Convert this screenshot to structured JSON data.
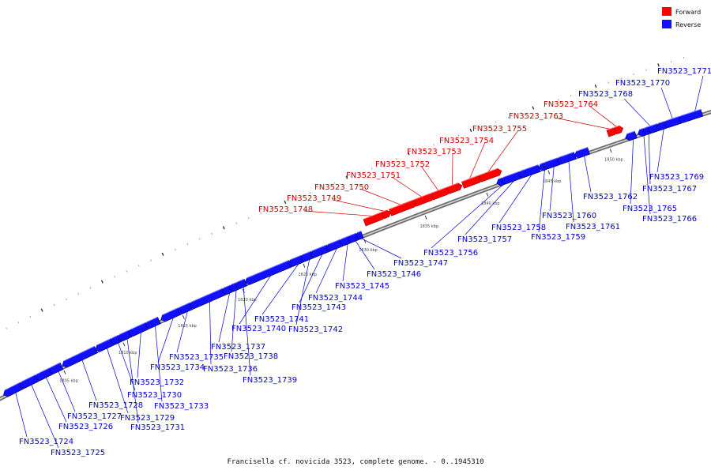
{
  "caption": "Francisella cf. novicida 3523, complete genome. - 0..1945310",
  "legend": {
    "forward": {
      "label": "Forward",
      "color": "#ff0000"
    },
    "reverse": {
      "label": "Reverse",
      "color": "#1010ff"
    }
  },
  "colors": {
    "forward_text": "#cc0000",
    "reverse_text": "#0000cc",
    "backbone": "#888888"
  },
  "ticks": [
    {
      "kbp": 1805,
      "label": "1805 kbp"
    },
    {
      "kbp": 1810,
      "label": "1810 kbp"
    },
    {
      "kbp": 1815,
      "label": "1815 kbp"
    },
    {
      "kbp": 1820,
      "label": "1820 kbp"
    },
    {
      "kbp": 1825,
      "label": "1825 kbp"
    },
    {
      "kbp": 1830,
      "label": "1830 kbp"
    },
    {
      "kbp": 1835,
      "label": "1835 kbp"
    },
    {
      "kbp": 1840,
      "label": "1840 kbp"
    },
    {
      "kbp": 1845,
      "label": "1845 kbp"
    },
    {
      "kbp": 1850,
      "label": "1850 kbp"
    }
  ],
  "genes": [
    {
      "name": "FN3523_1724",
      "strand": "reverse",
      "start": 1800.3,
      "end": 1801.6
    },
    {
      "name": "FN3523_1725",
      "strand": "reverse",
      "start": 1801.7,
      "end": 1802.9
    },
    {
      "name": "FN3523_1726",
      "strand": "reverse",
      "start": 1803.0,
      "end": 1804.1
    },
    {
      "name": "FN3523_1727",
      "strand": "reverse",
      "start": 1804.2,
      "end": 1805.0
    },
    {
      "name": "FN3523_1728",
      "strand": "reverse",
      "start": 1805.3,
      "end": 1807.9
    },
    {
      "name": "FN3523_1729",
      "strand": "reverse",
      "start": 1808.1,
      "end": 1809.3
    },
    {
      "name": "FN3523_1730",
      "strand": "reverse",
      "start": 1809.4,
      "end": 1809.9
    },
    {
      "name": "FN3523_1731",
      "strand": "reverse",
      "start": 1810.0,
      "end": 1810.8
    },
    {
      "name": "FN3523_1732",
      "strand": "reverse",
      "start": 1810.9,
      "end": 1812.2
    },
    {
      "name": "FN3523_1733",
      "strand": "reverse",
      "start": 1812.3,
      "end": 1813.2
    },
    {
      "name": "FN3523_1734",
      "strand": "reverse",
      "start": 1813.6,
      "end": 1814.9
    },
    {
      "name": "FN3523_1735",
      "strand": "reverse",
      "start": 1815.0,
      "end": 1815.9
    },
    {
      "name": "FN3523_1736",
      "strand": "reverse",
      "start": 1816.0,
      "end": 1818.6
    },
    {
      "name": "FN3523_1737",
      "strand": "reverse",
      "start": 1818.7,
      "end": 1819.2
    },
    {
      "name": "FN3523_1738",
      "strand": "reverse",
      "start": 1819.3,
      "end": 1819.7
    },
    {
      "name": "FN3523_1739",
      "strand": "reverse",
      "start": 1819.8,
      "end": 1820.4
    },
    {
      "name": "FN3523_1740",
      "strand": "reverse",
      "start": 1820.6,
      "end": 1824.1
    },
    {
      "name": "FN3523_1741",
      "strand": "reverse",
      "start": 1824.2,
      "end": 1825.1
    },
    {
      "name": "FN3523_1742",
      "strand": "reverse",
      "start": 1825.2,
      "end": 1825.9
    },
    {
      "name": "FN3523_1743",
      "strand": "reverse",
      "start": 1826.0,
      "end": 1827.2
    },
    {
      "name": "FN3523_1744",
      "strand": "reverse",
      "start": 1827.3,
      "end": 1828.3
    },
    {
      "name": "FN3523_1745",
      "strand": "reverse",
      "start": 1828.4,
      "end": 1829.0
    },
    {
      "name": "FN3523_1746",
      "strand": "reverse",
      "start": 1829.1,
      "end": 1829.6
    },
    {
      "name": "FN3523_1747",
      "strand": "reverse",
      "start": 1829.7,
      "end": 1830.0
    },
    {
      "name": "FN3523_1748",
      "strand": "forward",
      "start": 1830.5,
      "end": 1831.9
    },
    {
      "name": "FN3523_1749",
      "strand": "forward",
      "start": 1832.0,
      "end": 1832.4
    },
    {
      "name": "FN3523_1750",
      "strand": "forward",
      "start": 1832.6,
      "end": 1834.5
    },
    {
      "name": "FN3523_1751",
      "strand": "forward",
      "start": 1834.6,
      "end": 1835.9
    },
    {
      "name": "FN3523_1752",
      "strand": "forward",
      "start": 1836.0,
      "end": 1837.2
    },
    {
      "name": "FN3523_1753",
      "strand": "forward",
      "start": 1837.3,
      "end": 1838.2
    },
    {
      "name": "FN3523_1754",
      "strand": "forward",
      "start": 1838.5,
      "end": 1839.8
    },
    {
      "name": "FN3523_1755",
      "strand": "forward",
      "start": 1839.9,
      "end": 1841.4
    },
    {
      "name": "FN3523_1756",
      "strand": "reverse",
      "start": 1841.2,
      "end": 1841.5
    },
    {
      "name": "FN3523_1757",
      "strand": "reverse",
      "start": 1841.6,
      "end": 1842.9
    },
    {
      "name": "FN3523_1758",
      "strand": "reverse",
      "start": 1843.0,
      "end": 1844.4
    },
    {
      "name": "FN3523_1759",
      "strand": "reverse",
      "start": 1844.6,
      "end": 1844.9
    },
    {
      "name": "FN3523_1760",
      "strand": "reverse",
      "start": 1845.0,
      "end": 1846.0
    },
    {
      "name": "FN3523_1761",
      "strand": "reverse",
      "start": 1846.1,
      "end": 1847.3
    },
    {
      "name": "FN3523_1762",
      "strand": "reverse",
      "start": 1847.5,
      "end": 1848.4
    },
    {
      "name": "FN3523_1763",
      "strand": "forward",
      "start": 1850.2,
      "end": 1850.7
    },
    {
      "name": "FN3523_1764",
      "strand": "forward",
      "start": 1850.8,
      "end": 1851.2
    },
    {
      "name": "FN3523_1765",
      "strand": "reverse",
      "start": 1851.6,
      "end": 1852.2
    },
    {
      "name": "FN3523_1766",
      "strand": "reverse",
      "start": 1852.6,
      "end": 1852.9
    },
    {
      "name": "FN3523_1767",
      "strand": "reverse",
      "start": 1853.0,
      "end": 1853.3
    },
    {
      "name": "FN3523_1768",
      "strand": "reverse",
      "start": 1853.4,
      "end": 1854.0
    },
    {
      "name": "FN3523_1769",
      "strand": "reverse",
      "start": 1854.1,
      "end": 1854.6
    },
    {
      "name": "FN3523_1770",
      "strand": "reverse",
      "start": 1854.7,
      "end": 1855.8
    },
    {
      "name": "FN3523_1771",
      "strand": "reverse",
      "start": 1855.9,
      "end": 1857.5
    }
  ]
}
